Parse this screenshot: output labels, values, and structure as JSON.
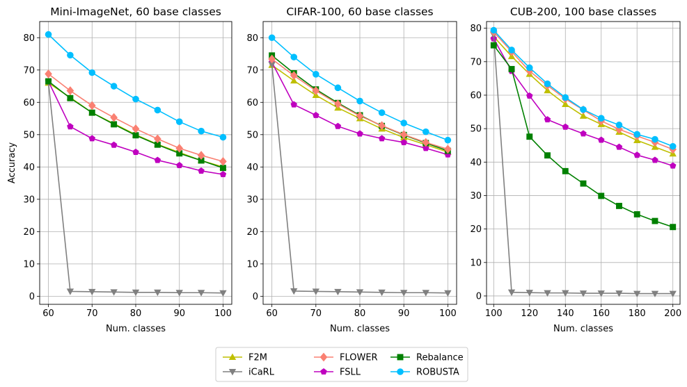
{
  "chart_data": [
    {
      "type": "line",
      "title": "Mini-ImageNet, 60 base classes",
      "xlabel": "Num. classes",
      "ylabel": "Accuracy",
      "grid": true,
      "x": [
        60,
        65,
        70,
        75,
        80,
        85,
        90,
        95,
        100
      ],
      "xlim": [
        58,
        102
      ],
      "ylim": [
        -2.5,
        85
      ],
      "xticks": [
        60,
        70,
        80,
        90,
        100
      ],
      "yticks": [
        0,
        10,
        20,
        30,
        40,
        50,
        60,
        70,
        80
      ],
      "series": [
        {
          "name": "F2M",
          "values": [
            66.0,
            61.5,
            56.8,
            53.4,
            50.0,
            47.0,
            44.5,
            42.0,
            40.0
          ]
        },
        {
          "name": "FSLL",
          "values": [
            66.5,
            52.5,
            48.8,
            46.8,
            44.6,
            42.1,
            40.5,
            38.8,
            37.7
          ]
        },
        {
          "name": "iCaRL",
          "values": [
            66.2,
            1.5,
            1.4,
            1.3,
            1.2,
            1.2,
            1.1,
            1.1,
            1.0
          ]
        },
        {
          "name": "Rebalance",
          "values": [
            66.5,
            61.3,
            56.8,
            53.2,
            49.8,
            46.9,
            44.2,
            42.0,
            39.7
          ]
        },
        {
          "name": "FLOWER",
          "values": [
            68.8,
            63.6,
            59.0,
            55.3,
            51.8,
            48.7,
            45.8,
            43.6,
            41.7
          ]
        },
        {
          "name": "ROBUSTA",
          "values": [
            81.0,
            74.6,
            69.2,
            65.0,
            61.0,
            57.6,
            54.0,
            51.1,
            49.2
          ]
        }
      ]
    },
    {
      "type": "line",
      "title": "CIFAR-100, 60 base classes",
      "xlabel": "Num. classes",
      "ylabel": "",
      "grid": true,
      "x": [
        60,
        65,
        70,
        75,
        80,
        85,
        90,
        95,
        100
      ],
      "xlim": [
        58,
        102
      ],
      "ylim": [
        -2.5,
        85
      ],
      "xticks": [
        60,
        70,
        80,
        90,
        100
      ],
      "yticks": [
        0,
        10,
        20,
        30,
        40,
        50,
        60,
        70,
        80
      ],
      "series": [
        {
          "name": "F2M",
          "values": [
            71.5,
            66.7,
            62.2,
            58.3,
            55.0,
            51.8,
            49.1,
            46.9,
            44.6
          ]
        },
        {
          "name": "FSLL",
          "values": [
            72.4,
            59.3,
            56.0,
            52.6,
            50.3,
            48.8,
            47.6,
            45.8,
            43.8
          ]
        },
        {
          "name": "iCaRL",
          "values": [
            71.7,
            1.6,
            1.5,
            1.4,
            1.3,
            1.2,
            1.1,
            1.1,
            1.0
          ]
        },
        {
          "name": "Rebalance",
          "values": [
            74.5,
            69.0,
            64.0,
            59.8,
            56.0,
            52.7,
            49.9,
            47.4,
            45.0
          ]
        },
        {
          "name": "FLOWER",
          "values": [
            73.4,
            68.3,
            63.6,
            59.5,
            55.8,
            52.8,
            50.0,
            47.6,
            45.5
          ]
        },
        {
          "name": "ROBUSTA",
          "values": [
            80.0,
            74.0,
            68.7,
            64.5,
            60.4,
            56.8,
            53.6,
            50.9,
            48.3
          ]
        }
      ]
    },
    {
      "type": "line",
      "title": "CUB-200, 100 base classes",
      "xlabel": "Num. classes",
      "ylabel": "",
      "grid": true,
      "x": [
        100,
        110,
        120,
        130,
        140,
        150,
        160,
        170,
        180,
        190,
        200
      ],
      "xlim": [
        96,
        204
      ],
      "ylim": [
        -2.5,
        82
      ],
      "xticks": [
        100,
        120,
        140,
        160,
        180,
        200
      ],
      "yticks": [
        0,
        10,
        20,
        30,
        40,
        50,
        60,
        70,
        80
      ],
      "series": [
        {
          "name": "F2M",
          "values": [
            77.5,
            71.6,
            66.3,
            61.4,
            57.3,
            53.8,
            51.3,
            49.0,
            46.5,
            44.5,
            42.5
          ]
        },
        {
          "name": "FSLL",
          "values": [
            76.9,
            67.2,
            59.8,
            52.7,
            50.5,
            48.5,
            46.6,
            44.5,
            42.1,
            40.6,
            38.9
          ]
        },
        {
          "name": "iCaRL",
          "values": [
            78.0,
            1.1,
            1.0,
            0.9,
            0.9,
            0.8,
            0.8,
            0.8,
            0.7,
            0.7,
            0.7
          ]
        },
        {
          "name": "Rebalance",
          "values": [
            74.9,
            67.8,
            47.6,
            42.0,
            37.3,
            33.6,
            29.9,
            26.9,
            24.4,
            22.4,
            20.6
          ]
        },
        {
          "name": "FLOWER",
          "values": [
            78.9,
            73.0,
            67.2,
            62.9,
            58.9,
            55.6,
            52.3,
            49.8,
            47.8,
            45.9,
            43.8
          ]
        },
        {
          "name": "ROBUSTA",
          "values": [
            79.4,
            73.5,
            68.2,
            63.4,
            59.3,
            55.7,
            53.1,
            51.1,
            48.3,
            46.8,
            44.7
          ]
        }
      ]
    }
  ],
  "legend": {
    "placement": "bottom-center",
    "entries": [
      {
        "name": "F2M",
        "color": "#bfbf00",
        "marker": "triangle-up"
      },
      {
        "name": "iCaRL",
        "color": "#808080",
        "marker": "triangle-down"
      },
      {
        "name": "FLOWER",
        "color": "#fa8072",
        "marker": "diamond"
      },
      {
        "name": "FSLL",
        "color": "#bf00bf",
        "marker": "pentagon"
      },
      {
        "name": "Rebalance",
        "color": "#008000",
        "marker": "square"
      },
      {
        "name": "ROBUSTA",
        "color": "#00bfff",
        "marker": "circle"
      }
    ]
  }
}
